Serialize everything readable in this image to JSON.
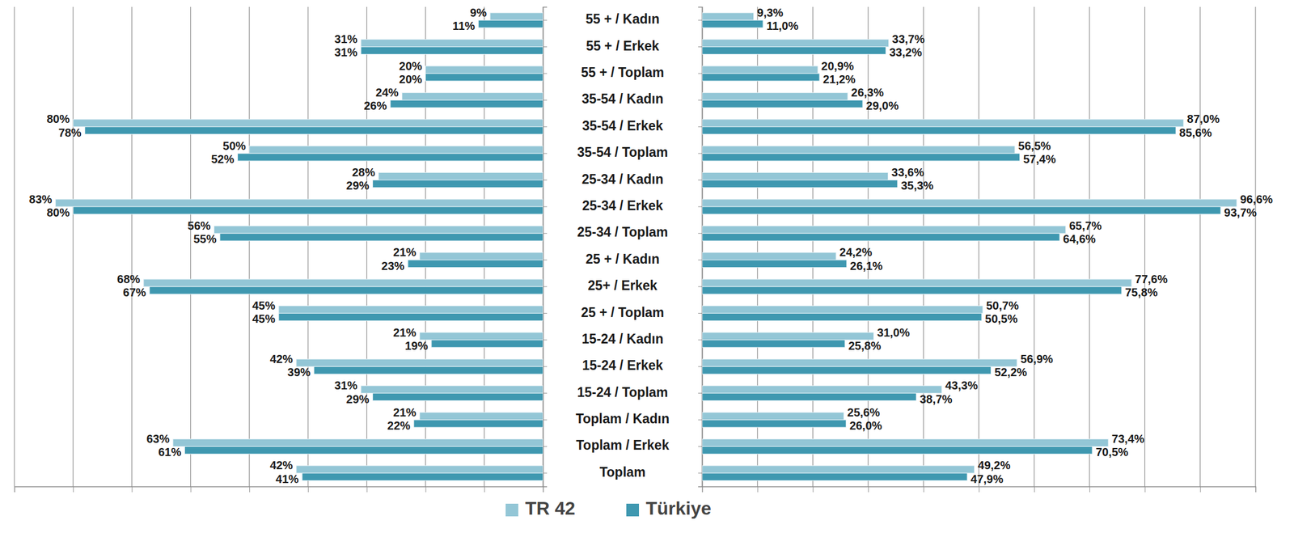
{
  "chart_data": [
    {
      "type": "bar",
      "orientation": "horizontal",
      "categories": [
        "55 + / Kadın",
        "55 + / Erkek",
        "55 + / Toplam",
        "35-54 / Kadın",
        "35-54 / Erkek",
        "35-54 / Toplam",
        "25-34 / Kadın",
        "25-34 / Erkek",
        "25-34 / Toplam",
        "25 + / Kadın",
        "25+ / Erkek",
        "25 + / Toplam",
        "15-24 / Kadın",
        "15-24 / Erkek",
        "15-24 / Toplam",
        "Toplam / Kadın",
        "Toplam / Erkek",
        "Toplam"
      ],
      "series": [
        {
          "name": "TR 42",
          "color": "#93c6d6",
          "values": [
            9,
            31,
            20,
            24,
            80,
            50,
            28,
            83,
            56,
            21,
            68,
            45,
            21,
            42,
            31,
            21,
            63,
            42
          ],
          "value_labels": [
            "9%",
            "31%",
            "20%",
            "24%",
            "80%",
            "50%",
            "28%",
            "83%",
            "56%",
            "21%",
            "68%",
            "45%",
            "21%",
            "42%",
            "31%",
            "21%",
            "63%",
            "42%"
          ]
        },
        {
          "name": "Türkiye",
          "color": "#3f98b0",
          "values": [
            11,
            31,
            20,
            26,
            78,
            52,
            29,
            80,
            55,
            23,
            67,
            45,
            19,
            39,
            29,
            22,
            61,
            41
          ],
          "value_labels": [
            "11%",
            "31%",
            "20%",
            "26%",
            "78%",
            "52%",
            "29%",
            "80%",
            "55%",
            "23%",
            "67%",
            "45%",
            "19%",
            "39%",
            "29%",
            "22%",
            "61%",
            "41%"
          ]
        }
      ],
      "xlim": [
        0,
        90
      ],
      "xticks": [
        0,
        10,
        20,
        30,
        40,
        50,
        60,
        70,
        80,
        90
      ],
      "grid": true,
      "data_labels": true,
      "tick_labels": false,
      "legend": "bottom"
    },
    {
      "type": "bar",
      "orientation": "horizontal",
      "categories": [
        "55 + / Kadın",
        "55 + / Erkek",
        "55 + / Toplam",
        "35-54 / Kadın",
        "35-54 / Erkek",
        "35-54 / Toplam",
        "25-34 / Kadın",
        "25-34 / Erkek",
        "25-34 / Toplam",
        "25 + / Kadın",
        "25+ / Erkek",
        "25 + / Toplam",
        "15-24 / Kadın",
        "15-24 / Erkek",
        "15-24 / Toplam",
        "Toplam / Kadın",
        "Toplam / Erkek",
        "Toplam"
      ],
      "series": [
        {
          "name": "TR 42",
          "color": "#93c6d6",
          "values": [
            9.3,
            33.7,
            20.9,
            26.3,
            87.0,
            56.5,
            33.6,
            96.6,
            65.7,
            24.2,
            77.6,
            50.7,
            31.0,
            56.9,
            43.3,
            25.6,
            73.4,
            49.2
          ],
          "value_labels": [
            "9,3%",
            "33,7%",
            "20,9%",
            "26,3%",
            "87,0%",
            "56,5%",
            "33,6%",
            "96,6%",
            "65,7%",
            "24,2%",
            "77,6%",
            "50,7%",
            "31,0%",
            "56,9%",
            "43,3%",
            "25,6%",
            "73,4%",
            "49,2%"
          ]
        },
        {
          "name": "Türkiye",
          "color": "#3f98b0",
          "values": [
            11.0,
            33.2,
            21.2,
            29.0,
            85.6,
            57.4,
            35.3,
            93.7,
            64.6,
            26.1,
            75.8,
            50.5,
            25.8,
            52.2,
            38.7,
            26.0,
            70.5,
            47.9
          ],
          "value_labels": [
            "11,0%",
            "33,2%",
            "21,2%",
            "29,0%",
            "85,6%",
            "57,4%",
            "35,3%",
            "93,7%",
            "64,6%",
            "26,1%",
            "75,8%",
            "50,5%",
            "25,8%",
            "52,2%",
            "38,7%",
            "26,0%",
            "70,5%",
            "47,9%"
          ]
        }
      ],
      "xlim": [
        0,
        100
      ],
      "xticks": [
        0,
        10,
        20,
        30,
        40,
        50,
        60,
        70,
        80,
        90,
        100
      ],
      "grid": true,
      "data_labels": true,
      "tick_labels": false
    }
  ]
}
